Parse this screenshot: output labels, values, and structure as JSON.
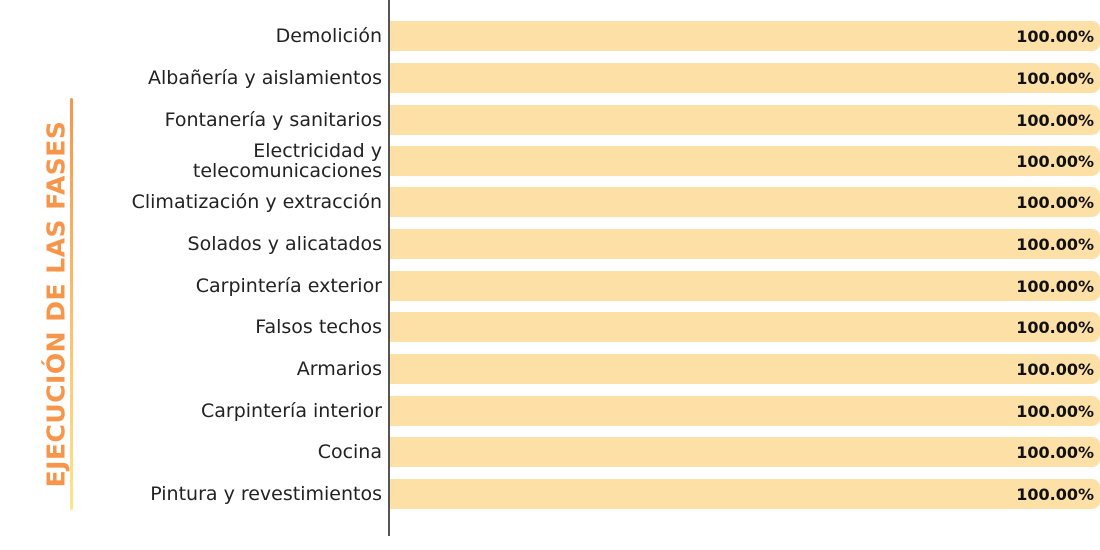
{
  "side_title": "EJECUCIÓN DE LAS FASES",
  "colors": {
    "title": "#f7964a",
    "title_line_top": "#f7964a",
    "title_line_bottom": "#fde58a",
    "bar": "#fde0a6",
    "axis": "#555555"
  },
  "chart_data": {
    "type": "bar",
    "orientation": "horizontal",
    "title": "",
    "xlabel": "",
    "ylabel": "EJECUCIÓN DE LAS FASES",
    "xlim": [
      0,
      100
    ],
    "grid": false,
    "categories": [
      "Demolición",
      "Albañería y aislamientos",
      "Fontanería y sanitarios",
      "Electricidad y telecomunicaciones",
      "Climatización y extracción",
      "Solados y alicatados",
      "Carpintería exterior",
      "Falsos techos",
      "Armarios",
      "Carpintería interior",
      "Cocina",
      "Pintura y revestimientos"
    ],
    "values": [
      100,
      100,
      100,
      100,
      100,
      100,
      100,
      100,
      100,
      100,
      100,
      100
    ],
    "value_labels": [
      "100.00%",
      "100.00%",
      "100.00%",
      "100.00%",
      "100.00%",
      "100.00%",
      "100.00%",
      "100.00%",
      "100.00%",
      "100.00%",
      "100.00%",
      "100.00%"
    ]
  }
}
